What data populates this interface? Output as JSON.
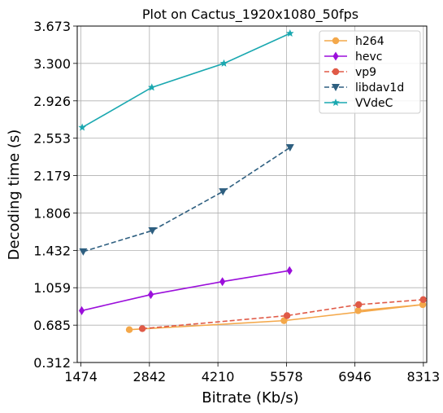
{
  "chart_data": {
    "type": "line",
    "title": "Plot on Cactus_1920x1080_50fps",
    "xlabel": "Bitrate (Kb/s)",
    "ylabel": "Decoding time (s)",
    "xlim": [
      1400,
      8380
    ],
    "ylim": [
      0.312,
      3.673
    ],
    "xticks": [
      "1474",
      "2842",
      "4210",
      "5578",
      "6946",
      "8313"
    ],
    "yticks": [
      "0.312",
      "0.685",
      "1.059",
      "1.432",
      "1.806",
      "2.179",
      "2.553",
      "2.926",
      "3.300",
      "3.673"
    ],
    "grid": true,
    "legend_position": "top-right",
    "series": [
      {
        "name": "h264",
        "color": "#f4a84a",
        "dashed": false,
        "marker": "circle",
        "x": [
          2440,
          5530,
          8300,
          7010
        ],
        "y": [
          0.64,
          0.73,
          0.89,
          0.83
        ]
      },
      {
        "name": "hevc",
        "color": "#9b0fdb",
        "dashed": false,
        "marker": "diamond",
        "x": [
          1490,
          2870,
          4300,
          5640
        ],
        "y": [
          0.83,
          0.99,
          1.12,
          1.23
        ]
      },
      {
        "name": "vp9",
        "color": "#e05a47",
        "dashed": true,
        "marker": "circle",
        "x": [
          2700,
          5590,
          7020,
          8310
        ],
        "y": [
          0.65,
          0.78,
          0.89,
          0.94
        ]
      },
      {
        "name": "libdav1d",
        "color": "#2e5f80",
        "dashed": true,
        "marker": "triangle-down",
        "x": [
          1520,
          2900,
          4310,
          5650
        ],
        "y": [
          1.42,
          1.63,
          2.02,
          2.46
        ]
      },
      {
        "name": "VVdeC",
        "color": "#1aa8b0",
        "dashed": false,
        "marker": "star",
        "x": [
          1500,
          2890,
          4330,
          5650
        ],
        "y": [
          2.66,
          3.06,
          3.3,
          3.6
        ]
      }
    ]
  }
}
